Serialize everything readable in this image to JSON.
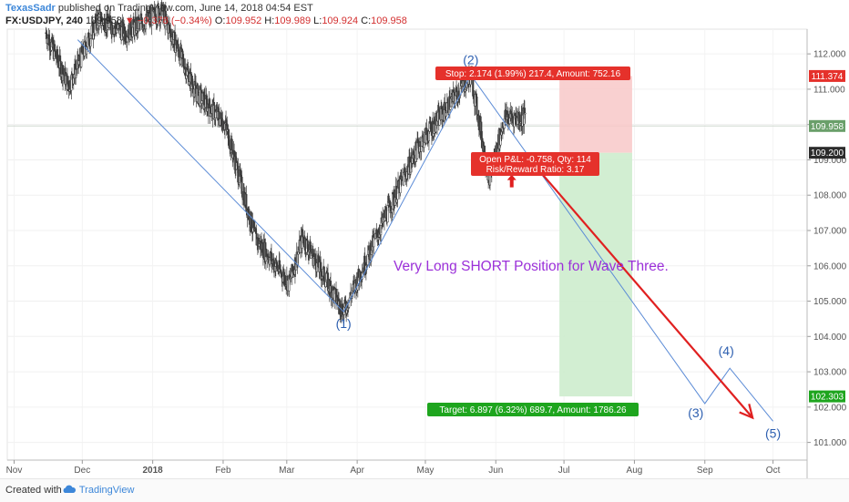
{
  "header": {
    "author": "TexasSadr",
    "published": " published on TradingView.com, June 14, 2018 04:54 EST",
    "symbol": "FX:USDJPY, 240",
    "last": "109.958",
    "change": "−0.378 (−0.34%)",
    "open_label": "O:",
    "open": "109.952",
    "high_label": "H:",
    "high": "109.989",
    "low_label": "L:",
    "low": "109.924",
    "close_label": "C:",
    "close": "109.958"
  },
  "footer": {
    "created_with": "Created with",
    "brand": "TradingView"
  },
  "colors": {
    "candle": "#3a3a3a",
    "wave_line": "#5b8bd6",
    "short_arrow": "#e02020",
    "stop_zone": "#f8c8c8",
    "target_zone": "#cdeccd",
    "annotation": "#9b30d9",
    "label_stop": "#e5312b",
    "label_target": "#1ea51e",
    "price_tag_last": "#6a9f6a",
    "price_tag_dark": "#2b2b2b"
  },
  "chart_data": {
    "type": "candlestick",
    "title": "",
    "xlabel": "",
    "ylabel": "",
    "x_ticks": [
      "Nov",
      "Dec",
      "2018",
      "Feb",
      "Mar",
      "Apr",
      "May",
      "Jun",
      "Jul",
      "Aug",
      "Sep",
      "Oct"
    ],
    "y_ticks": [
      "112.000",
      "111.000",
      "110.000",
      "109.000",
      "108.000",
      "107.000",
      "106.000",
      "105.000",
      "104.000",
      "103.000",
      "102.000",
      "101.000"
    ],
    "ylim": [
      100.5,
      112.7
    ],
    "approx_price_path": [
      {
        "date": "2017-11-15",
        "price": 112.6
      },
      {
        "date": "2017-11-25",
        "price": 111.1
      },
      {
        "date": "2017-12-08",
        "price": 113.0
      },
      {
        "date": "2017-12-20",
        "price": 112.6
      },
      {
        "date": "2018-01-05",
        "price": 113.2
      },
      {
        "date": "2018-01-20",
        "price": 110.9
      },
      {
        "date": "2018-02-02",
        "price": 110.0
      },
      {
        "date": "2018-02-15",
        "price": 106.8
      },
      {
        "date": "2018-03-02",
        "price": 105.5
      },
      {
        "date": "2018-03-08",
        "price": 106.8
      },
      {
        "date": "2018-03-26",
        "price": 104.7
      },
      {
        "date": "2018-04-12",
        "price": 107.2
      },
      {
        "date": "2018-04-28",
        "price": 109.4
      },
      {
        "date": "2018-05-21",
        "price": 111.4
      },
      {
        "date": "2018-05-29",
        "price": 108.5
      },
      {
        "date": "2018-06-05",
        "price": 110.2
      },
      {
        "date": "2018-06-14",
        "price": 110.2
      }
    ],
    "waves": [
      {
        "label": "(1)",
        "date": "2018-03-26",
        "price": 104.7
      },
      {
        "label": "(2)",
        "date": "2018-05-21",
        "price": 111.4
      },
      {
        "label": "(3)",
        "date": "2018-09-01",
        "price": 102.1
      },
      {
        "label": "(4)",
        "date": "2018-09-12",
        "price": 103.1
      },
      {
        "label": "(5)",
        "date": "2018-10-01",
        "price": 101.6
      }
    ],
    "position": {
      "entry": 109.2,
      "stop": 111.374,
      "target": 102.303,
      "last_price": 109.958,
      "stop_label": "Stop: 2.174 (1.99%) 217.4, Amount: 752.16",
      "target_label": "Target: 6.897 (6.32%) 689.7, Amount: 1786.26",
      "pnl_label": "Open P&L: -0.758, Qty: 114",
      "rr_label": "Risk/Reward Ratio: 3.17",
      "start_date": "2018-06-29",
      "end_date": "2018-07-31"
    },
    "annotation": "Very Long SHORT Position for Wave Three.",
    "price_tags": [
      "111.374",
      "109.958",
      "109.200",
      "102.303"
    ]
  }
}
